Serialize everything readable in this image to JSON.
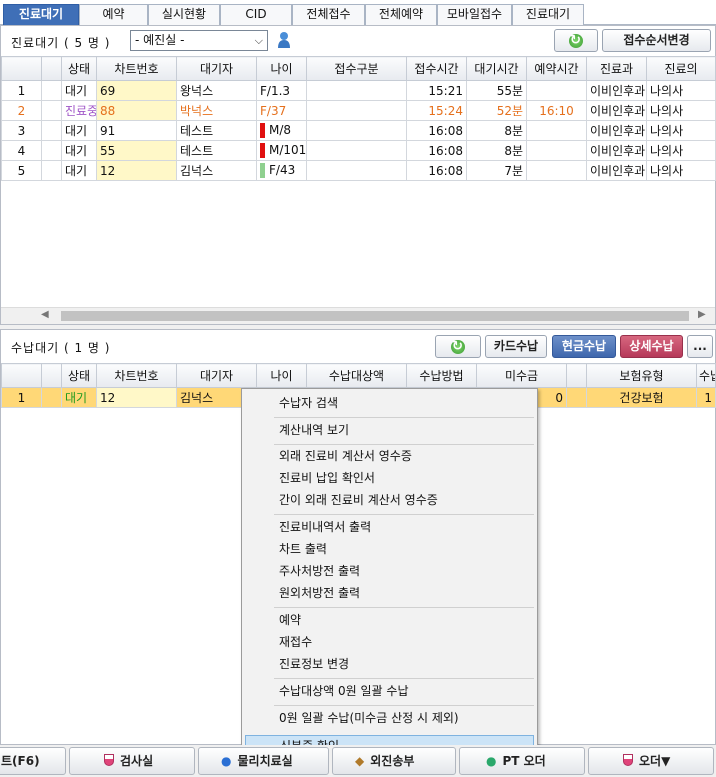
{
  "tabs": [
    "진료대기",
    "예약",
    "실시현황",
    "CID",
    "전체접수",
    "전체예약",
    "모바일접수",
    "진료대기"
  ],
  "waiting": {
    "count_label": "진료대기  ( 5 명 )",
    "dept_select": "- 예진실 -",
    "reorder_button": "접수순서변경",
    "columns": [
      "",
      "상태",
      "차트번호",
      "대기자",
      "나이",
      "접수구분",
      "접수시간",
      "대기시간",
      "예약시간",
      "진료과",
      "진료의"
    ],
    "rows": [
      {
        "no": "1",
        "status": "대기",
        "chart": "69",
        "name": "왕넉스",
        "mark": "",
        "age": "F/1.3",
        "kind": "",
        "time": "15:21",
        "wait": "55분",
        "resv": "",
        "dept": "이비인후과",
        "doctor": "나의사"
      },
      {
        "no": "2",
        "status": "진료중",
        "chart": "88",
        "name": "박넉스",
        "mark": "",
        "age": "F/37",
        "kind": "",
        "time": "15:24",
        "wait": "52분",
        "resv": "16:10",
        "dept": "이비인후과",
        "doctor": "나의사"
      },
      {
        "no": "3",
        "status": "대기",
        "chart": "91",
        "name": "테스트",
        "mark": "#e01010",
        "age": "M/8",
        "kind": "",
        "time": "16:08",
        "wait": "8분",
        "resv": "",
        "dept": "이비인후과",
        "doctor": "나의사"
      },
      {
        "no": "4",
        "status": "대기",
        "chart": "55",
        "name": "테스트",
        "mark": "#e01010",
        "age": "M/101",
        "kind": "",
        "time": "16:08",
        "wait": "8분",
        "resv": "",
        "dept": "이비인후과",
        "doctor": "나의사"
      },
      {
        "no": "5",
        "status": "대기",
        "chart": "12",
        "name": "김넉스",
        "mark": "#8fd08f",
        "age": "F/43",
        "kind": "",
        "time": "16:08",
        "wait": "7분",
        "resv": "",
        "dept": "이비인후과",
        "doctor": "나의사"
      }
    ]
  },
  "payment": {
    "count_label": "수납대기  ( 1 명 )",
    "card_button": "카드수납",
    "cash_button": "현금수납",
    "detail_button": "상세수납",
    "more_button": "...",
    "columns": [
      "",
      "상태",
      "차트번호",
      "대기자",
      "나이",
      "수납대상액",
      "수납방법",
      "미수금",
      "",
      "보험유형",
      "수납"
    ],
    "rows": [
      {
        "no": "1",
        "status": "대기",
        "chart": "12",
        "name": "김넉스",
        "age": "",
        "target": "",
        "method": "",
        "unpaid": "0",
        "blank": "",
        "insurance": "건강보험",
        "paid": "1"
      }
    ]
  },
  "context_menu": {
    "items": [
      "수납자 검색",
      "계산내역 보기",
      "외래 진료비 계산서 영수증",
      "진료비 납입 확인서",
      "간이 외래 진료비 계산서 영수증",
      "진료비내역서 출력",
      "차트 출력",
      "주사처방전 출력",
      "원외처방전 출력",
      "예약",
      "재접수",
      "진료정보 변경",
      "수납대상액 0원 일괄 수납",
      "0원 일괄 수납(미수금 산정 시 제외)",
      "신분증 확인"
    ],
    "highlighted": "신분증 확인"
  },
  "bottom": {
    "f6": "트(F6)",
    "lab": "검사실",
    "btn3": "물리치료실",
    "btn4": "외진송부",
    "btn5": "PT 오더",
    "order": "오더▼"
  },
  "colors": {
    "accent": "#3f6fb7",
    "selected_row": "#ffd877",
    "chart_cell": "#fff8c8",
    "in_progress": "#e5701d"
  }
}
